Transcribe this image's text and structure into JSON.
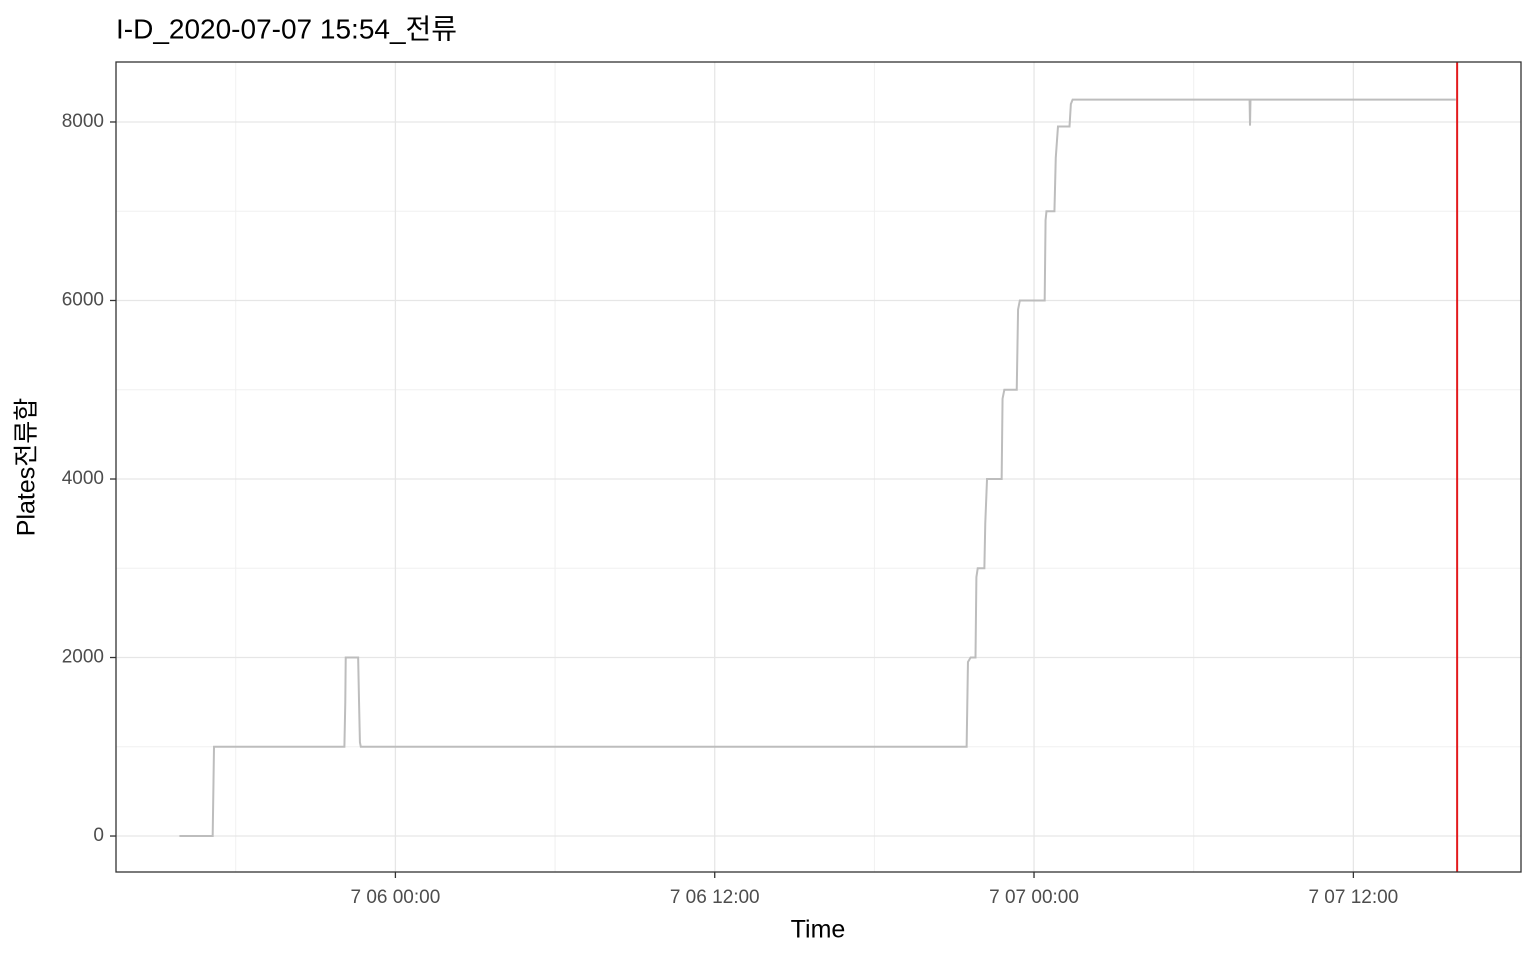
{
  "chart_data": {
    "type": "line",
    "title": "I-D_2020-07-07 15:54_전류",
    "x_label": "Time",
    "y_label": "Plates전류합",
    "x": [
      "7 05 15:53",
      "7 05 17:08",
      "7 05 17:11",
      "7 05 22:05",
      "7 05 22:07",
      "7 05 22:08",
      "7 05 22:36",
      "7 05 22:38",
      "7 05 22:40",
      "7 05 22:42",
      "7 06 21:28",
      "7 06 21:31",
      "7 06 21:37",
      "7 06 21:48",
      "7 06 21:50",
      "7 06 21:53",
      "7 06 22:08",
      "7 06 22:10",
      "7 06 22:14",
      "7 06 22:47",
      "7 06 22:49",
      "7 06 22:53",
      "7 06 23:21",
      "7 06 23:24",
      "7 06 23:28",
      "7 07 00:24",
      "7 07 00:26",
      "7 07 00:28",
      "7 07 00:46",
      "7 07 00:49",
      "7 07 00:54",
      "7 07 01:20",
      "7 07 01:23",
      "7 07 01:27",
      "7 07 08:06",
      "7 07 08:07",
      "7 07 08:08",
      "7 07 15:51"
    ],
    "values": [
      0,
      0,
      1000,
      1000,
      1500,
      2000,
      2000,
      1500,
      1050,
      1000,
      1000,
      1950,
      2000,
      2000,
      2900,
      3000,
      3000,
      3500,
      4000,
      4000,
      4900,
      5000,
      5000,
      5900,
      6000,
      6000,
      6900,
      7000,
      7000,
      7600,
      7950,
      7950,
      8200,
      8250,
      8250,
      7960,
      8250,
      8250
    ],
    "color": "#bdbdbd",
    "vline": {
      "x": "7 07 15:54",
      "color": "#e31a1c"
    },
    "xlim": [
      "7 05 13:30",
      "7 07 18:18"
    ],
    "xticks": [
      "7 06 00:00",
      "7 06 12:00",
      "7 07 00:00",
      "7 07 12:00"
    ],
    "x_minor_grid": [
      "7 05 18:00",
      "7 06 06:00",
      "7 06 18:00",
      "7 07 06:00"
    ],
    "ylim": [
      -403,
      8672
    ],
    "yticks": [
      0,
      2000,
      4000,
      6000,
      8000
    ],
    "y_minor_grid": [
      1000,
      3000,
      5000,
      7000
    ],
    "grid": true
  }
}
